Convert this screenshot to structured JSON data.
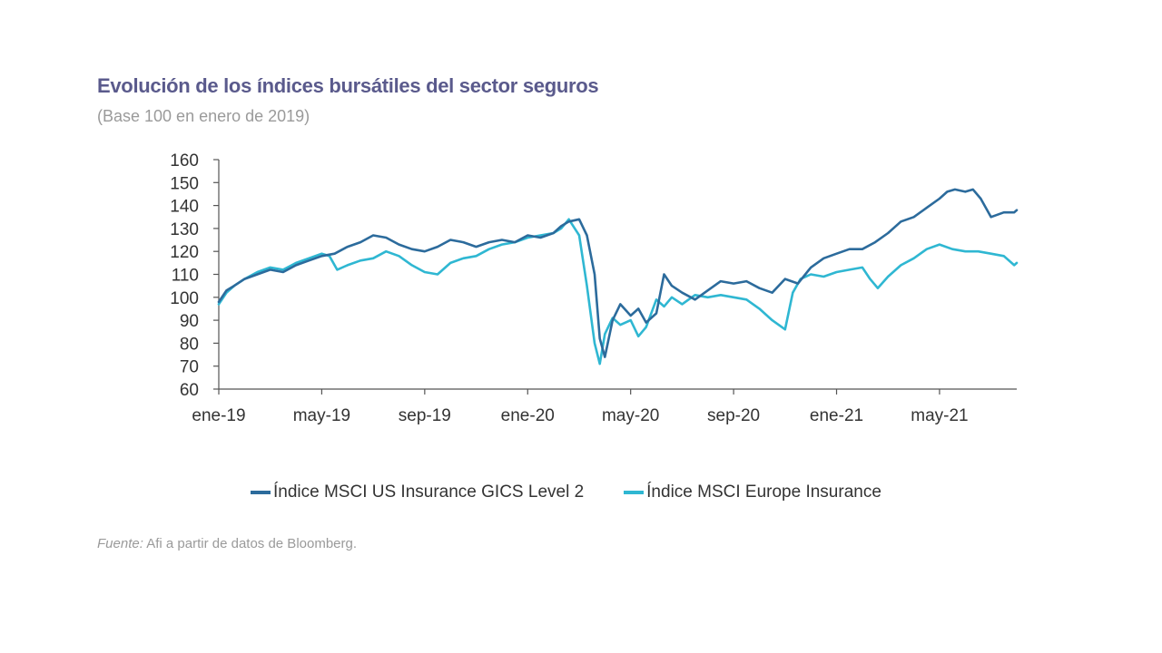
{
  "title": "Evolución de los índices bursátiles del sector seguros",
  "subtitle": "(Base 100 en enero de 2019)",
  "source": {
    "label": "Fuente:",
    "text": "Afi a partir de datos de Bloomberg."
  },
  "colors": {
    "us": "#2c6b9c",
    "europe": "#2fb7d2",
    "axis": "#555555"
  },
  "chart_data": {
    "type": "line",
    "title": "Evolución de los índices bursátiles del sector seguros",
    "subtitle": "(Base 100 en enero de 2019)",
    "xlabel": "",
    "ylabel": "",
    "ylim": [
      60,
      160
    ],
    "yticks": [
      60,
      70,
      80,
      90,
      100,
      110,
      120,
      130,
      140,
      150,
      160
    ],
    "xlim": [
      0,
      31
    ],
    "xticks": [
      {
        "pos": 0,
        "label": "ene-19"
      },
      {
        "pos": 4,
        "label": "may-19"
      },
      {
        "pos": 8,
        "label": "sep-19"
      },
      {
        "pos": 12,
        "label": "ene-20"
      },
      {
        "pos": 16,
        "label": "may-20"
      },
      {
        "pos": 20,
        "label": "sep-20"
      },
      {
        "pos": 24,
        "label": "ene-21"
      },
      {
        "pos": 28,
        "label": "may-21"
      }
    ],
    "legend_position": "bottom",
    "series": [
      {
        "name": "Índice MSCI US Insurance GICS Level 2",
        "color": "#2c6b9c",
        "x": [
          0,
          0.3,
          0.6,
          1,
          1.5,
          2,
          2.5,
          3,
          3.5,
          4,
          4.5,
          5,
          5.5,
          6,
          6.5,
          7,
          7.5,
          8,
          8.5,
          9,
          9.5,
          10,
          10.5,
          11,
          11.5,
          12,
          12.5,
          13,
          13.3,
          13.6,
          14,
          14.3,
          14.6,
          14.8,
          15,
          15.3,
          15.6,
          16,
          16.3,
          16.6,
          17,
          17.3,
          17.6,
          18,
          18.5,
          19,
          19.5,
          20,
          20.5,
          21,
          21.5,
          22,
          22.5,
          23,
          23.5,
          24,
          24.5,
          25,
          25.5,
          26,
          26.5,
          27,
          27.5,
          28,
          28.3,
          28.6,
          29,
          29.3,
          29.6,
          30,
          30.5,
          30.9,
          31
        ],
        "values": [
          98,
          103,
          105,
          108,
          110,
          112,
          111,
          114,
          116,
          118,
          119,
          122,
          124,
          127,
          126,
          123,
          121,
          120,
          122,
          125,
          124,
          122,
          124,
          125,
          124,
          127,
          126,
          128,
          131,
          133,
          134,
          127,
          110,
          82,
          74,
          90,
          97,
          92,
          95,
          89,
          93,
          110,
          105,
          102,
          99,
          103,
          107,
          106,
          107,
          104,
          102,
          108,
          106,
          113,
          117,
          119,
          121,
          121,
          124,
          128,
          133,
          135,
          139,
          143,
          146,
          147,
          146,
          147,
          143,
          135,
          137,
          137,
          138
        ]
      },
      {
        "name": "Índice MSCI Europe Insurance",
        "color": "#2fb7d2",
        "x": [
          0,
          0.3,
          0.6,
          1,
          1.5,
          2,
          2.5,
          3,
          3.5,
          4,
          4.3,
          4.6,
          5,
          5.5,
          6,
          6.5,
          7,
          7.5,
          8,
          8.5,
          9,
          9.5,
          10,
          10.5,
          11,
          11.5,
          12,
          12.5,
          13,
          13.3,
          13.6,
          14,
          14.3,
          14.6,
          14.8,
          15,
          15.3,
          15.6,
          16,
          16.3,
          16.6,
          17,
          17.3,
          17.6,
          18,
          18.5,
          19,
          19.5,
          20,
          20.5,
          21,
          21.5,
          22,
          22.3,
          22.6,
          23,
          23.5,
          24,
          24.5,
          25,
          25.3,
          25.6,
          26,
          26.5,
          27,
          27.5,
          28,
          28.5,
          29,
          29.5,
          30,
          30.5,
          30.9,
          31
        ],
        "values": [
          97,
          102,
          105,
          108,
          111,
          113,
          112,
          115,
          117,
          119,
          118,
          112,
          114,
          116,
          117,
          120,
          118,
          114,
          111,
          110,
          115,
          117,
          118,
          121,
          123,
          124,
          126,
          127,
          128,
          130,
          134,
          127,
          105,
          80,
          71,
          84,
          91,
          88,
          90,
          83,
          87,
          99,
          96,
          100,
          97,
          101,
          100,
          101,
          100,
          99,
          95,
          90,
          86,
          102,
          108,
          110,
          109,
          111,
          112,
          113,
          108,
          104,
          109,
          114,
          117,
          121,
          123,
          121,
          120,
          120,
          119,
          118,
          114,
          115
        ]
      }
    ]
  }
}
